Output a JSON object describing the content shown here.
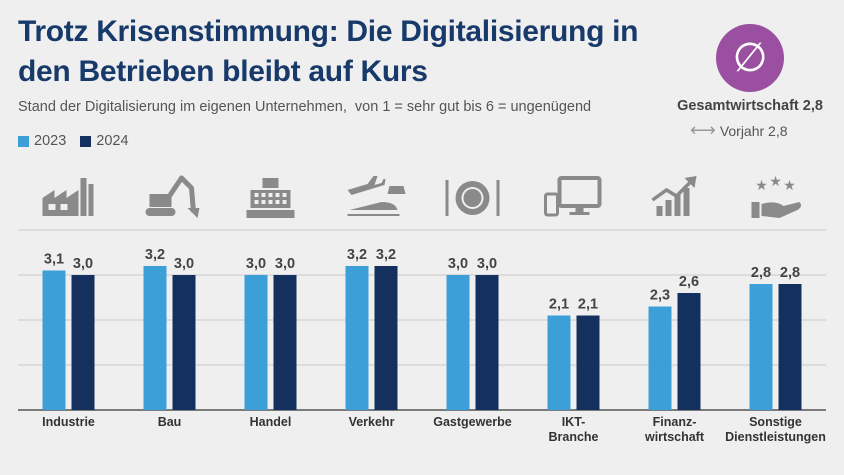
{
  "header": {
    "title": "Trotz Krisenstimmung: Die Digitalisierung in den Betrieben bleibt auf Kurs",
    "subtitle": "Stand der Digitalisierung im eigenen Unternehmen,  von 1 = sehr gut bis 6 = ungenügend"
  },
  "legend": [
    {
      "label": "2023",
      "color": "#3c9fd8"
    },
    {
      "label": "2024",
      "color": "#14305f"
    }
  ],
  "summary": {
    "badge_symbol": "∅",
    "badge_color": "#9b4fa0",
    "overall_label": "Gesamtwirtschaft 2,8",
    "previous_label": "Vorjahr 2,8"
  },
  "chart_data": {
    "type": "bar",
    "categories": [
      "Industrie",
      "Bau",
      "Handel",
      "Verkehr",
      "Gastgewerbe",
      "IKT-\nBranche",
      "Finanz-\nwirtschaft",
      "Sonstige\nDienstleistungen"
    ],
    "category_icons": [
      "factory-icon",
      "excavator-icon",
      "cash-register-icon",
      "transport-icon",
      "plate-cutlery-icon",
      "computer-icon",
      "growth-chart-icon",
      "stars-hand-icon"
    ],
    "series": [
      {
        "name": "2023",
        "values": [
          3.1,
          3.2,
          3.0,
          3.2,
          3.0,
          2.1,
          2.3,
          2.8
        ],
        "color": "#3c9fd8"
      },
      {
        "name": "2024",
        "values": [
          3.0,
          3.0,
          3.0,
          3.2,
          3.0,
          2.1,
          2.6,
          2.8
        ],
        "color": "#14305f"
      }
    ],
    "value_labels": [
      [
        "3,1",
        "3,2",
        "3,0",
        "3,2",
        "3,0",
        "2,1",
        "2,3",
        "2,8"
      ],
      [
        "3,0",
        "3,0",
        "3,0",
        "3,2",
        "3,0",
        "2,1",
        "2,6",
        "2,8"
      ]
    ],
    "ylim": [
      0,
      4
    ],
    "grid": true,
    "legend_position": "top-left"
  }
}
